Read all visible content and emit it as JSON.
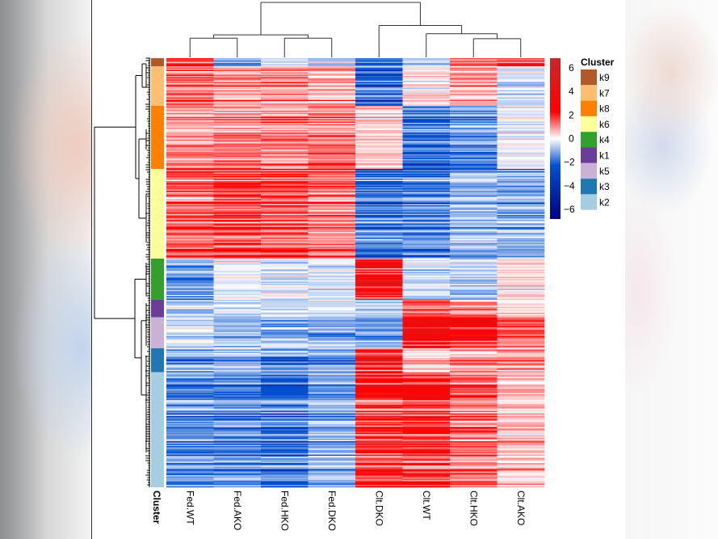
{
  "chart_data": {
    "type": "heatmap",
    "title": "",
    "columns": [
      "Fed.WT",
      "Fed.AKO",
      "Fed.HKO",
      "Fed.DKO",
      "Clt.DKO",
      "Clt.WT",
      "Clt.HKO",
      "Clt.AKO"
    ],
    "row_annotation_label": "Cluster",
    "clusters": [
      {
        "name": "k9",
        "color": "#B15928",
        "fraction": 0.019,
        "profile": [
          1.5,
          -1.2,
          -0.5,
          -0.8,
          -1.8,
          -0.6,
          1.2,
          1.8
        ]
      },
      {
        "name": "k7",
        "color": "#FDBF6F",
        "fraction": 0.092,
        "profile": [
          1.2,
          0.8,
          0.9,
          0.6,
          -2.0,
          0.2,
          0.9,
          -0.4
        ]
      },
      {
        "name": "k8",
        "color": "#FF7F00",
        "fraction": 0.147,
        "profile": [
          0.9,
          1.1,
          1.0,
          1.2,
          0.4,
          -1.9,
          -1.4,
          -0.2
        ]
      },
      {
        "name": "k6",
        "color": "#FFFF99",
        "fraction": 0.209,
        "profile": [
          1.5,
          1.8,
          1.6,
          1.2,
          -1.8,
          -1.6,
          -0.9,
          -1.0
        ]
      },
      {
        "name": "k4",
        "color": "#33A02C",
        "fraction": 0.096,
        "profile": [
          -1.2,
          -0.2,
          -0.4,
          -0.3,
          3.0,
          -0.5,
          -0.6,
          0.4
        ]
      },
      {
        "name": "k1",
        "color": "#6A3D9A",
        "fraction": 0.041,
        "profile": [
          -0.8,
          -0.6,
          -0.5,
          -0.3,
          -0.8,
          1.8,
          1.3,
          0.4
        ]
      },
      {
        "name": "k5",
        "color": "#CAB2D6",
        "fraction": 0.072,
        "profile": [
          -0.5,
          -0.9,
          -1.0,
          -1.0,
          -1.2,
          2.8,
          2.4,
          1.4
        ]
      },
      {
        "name": "k3",
        "color": "#1F78B4",
        "fraction": 0.056,
        "profile": [
          -1.2,
          -0.9,
          -1.4,
          -1.1,
          2.4,
          0.4,
          1.0,
          1.0
        ]
      },
      {
        "name": "k2",
        "color": "#A6CEE3",
        "fraction": 0.268,
        "profile": [
          -1.3,
          -1.4,
          -1.7,
          -1.0,
          1.9,
          2.0,
          1.2,
          0.5
        ]
      }
    ],
    "color_scale": {
      "label": "",
      "min": -6,
      "max": 6,
      "ticks": [
        6,
        4,
        2,
        0,
        -2,
        -4,
        -6
      ],
      "stops": [
        {
          "value": -6,
          "color": "#00007F"
        },
        {
          "value": -2,
          "color": "#0050D0"
        },
        {
          "value": 0,
          "color": "#FFFFFF"
        },
        {
          "value": 2,
          "color": "#FF0000"
        },
        {
          "value": 6,
          "color": "#C8282A"
        }
      ]
    },
    "column_dendrogram": {
      "merges": [
        [
          "Fed.WT",
          "Fed.AKO"
        ],
        [
          "Fed.HKO",
          "Fed.DKO"
        ],
        [
          "Clt.HKO",
          "Clt.AKO"
        ],
        [
          "Clt.WT",
          "(Clt.HKO,Clt.AKO)"
        ],
        [
          "Clt.DKO",
          "(Clt.WT,(Clt.HKO,Clt.AKO))"
        ],
        [
          "(Fed.WT,Fed.AKO)",
          "(Fed.HKO,Fed.DKO)"
        ],
        [
          "Fed-group",
          "Clt-group"
        ]
      ],
      "relative_heights": [
        0.35,
        0.35,
        0.34,
        0.43,
        0.58,
        0.41,
        1.0
      ]
    },
    "legend": {
      "title": "Cluster",
      "entries": [
        "k9",
        "k7",
        "k8",
        "k6",
        "k4",
        "k1",
        "k5",
        "k3",
        "k2"
      ],
      "position": "right"
    },
    "grid": false
  }
}
